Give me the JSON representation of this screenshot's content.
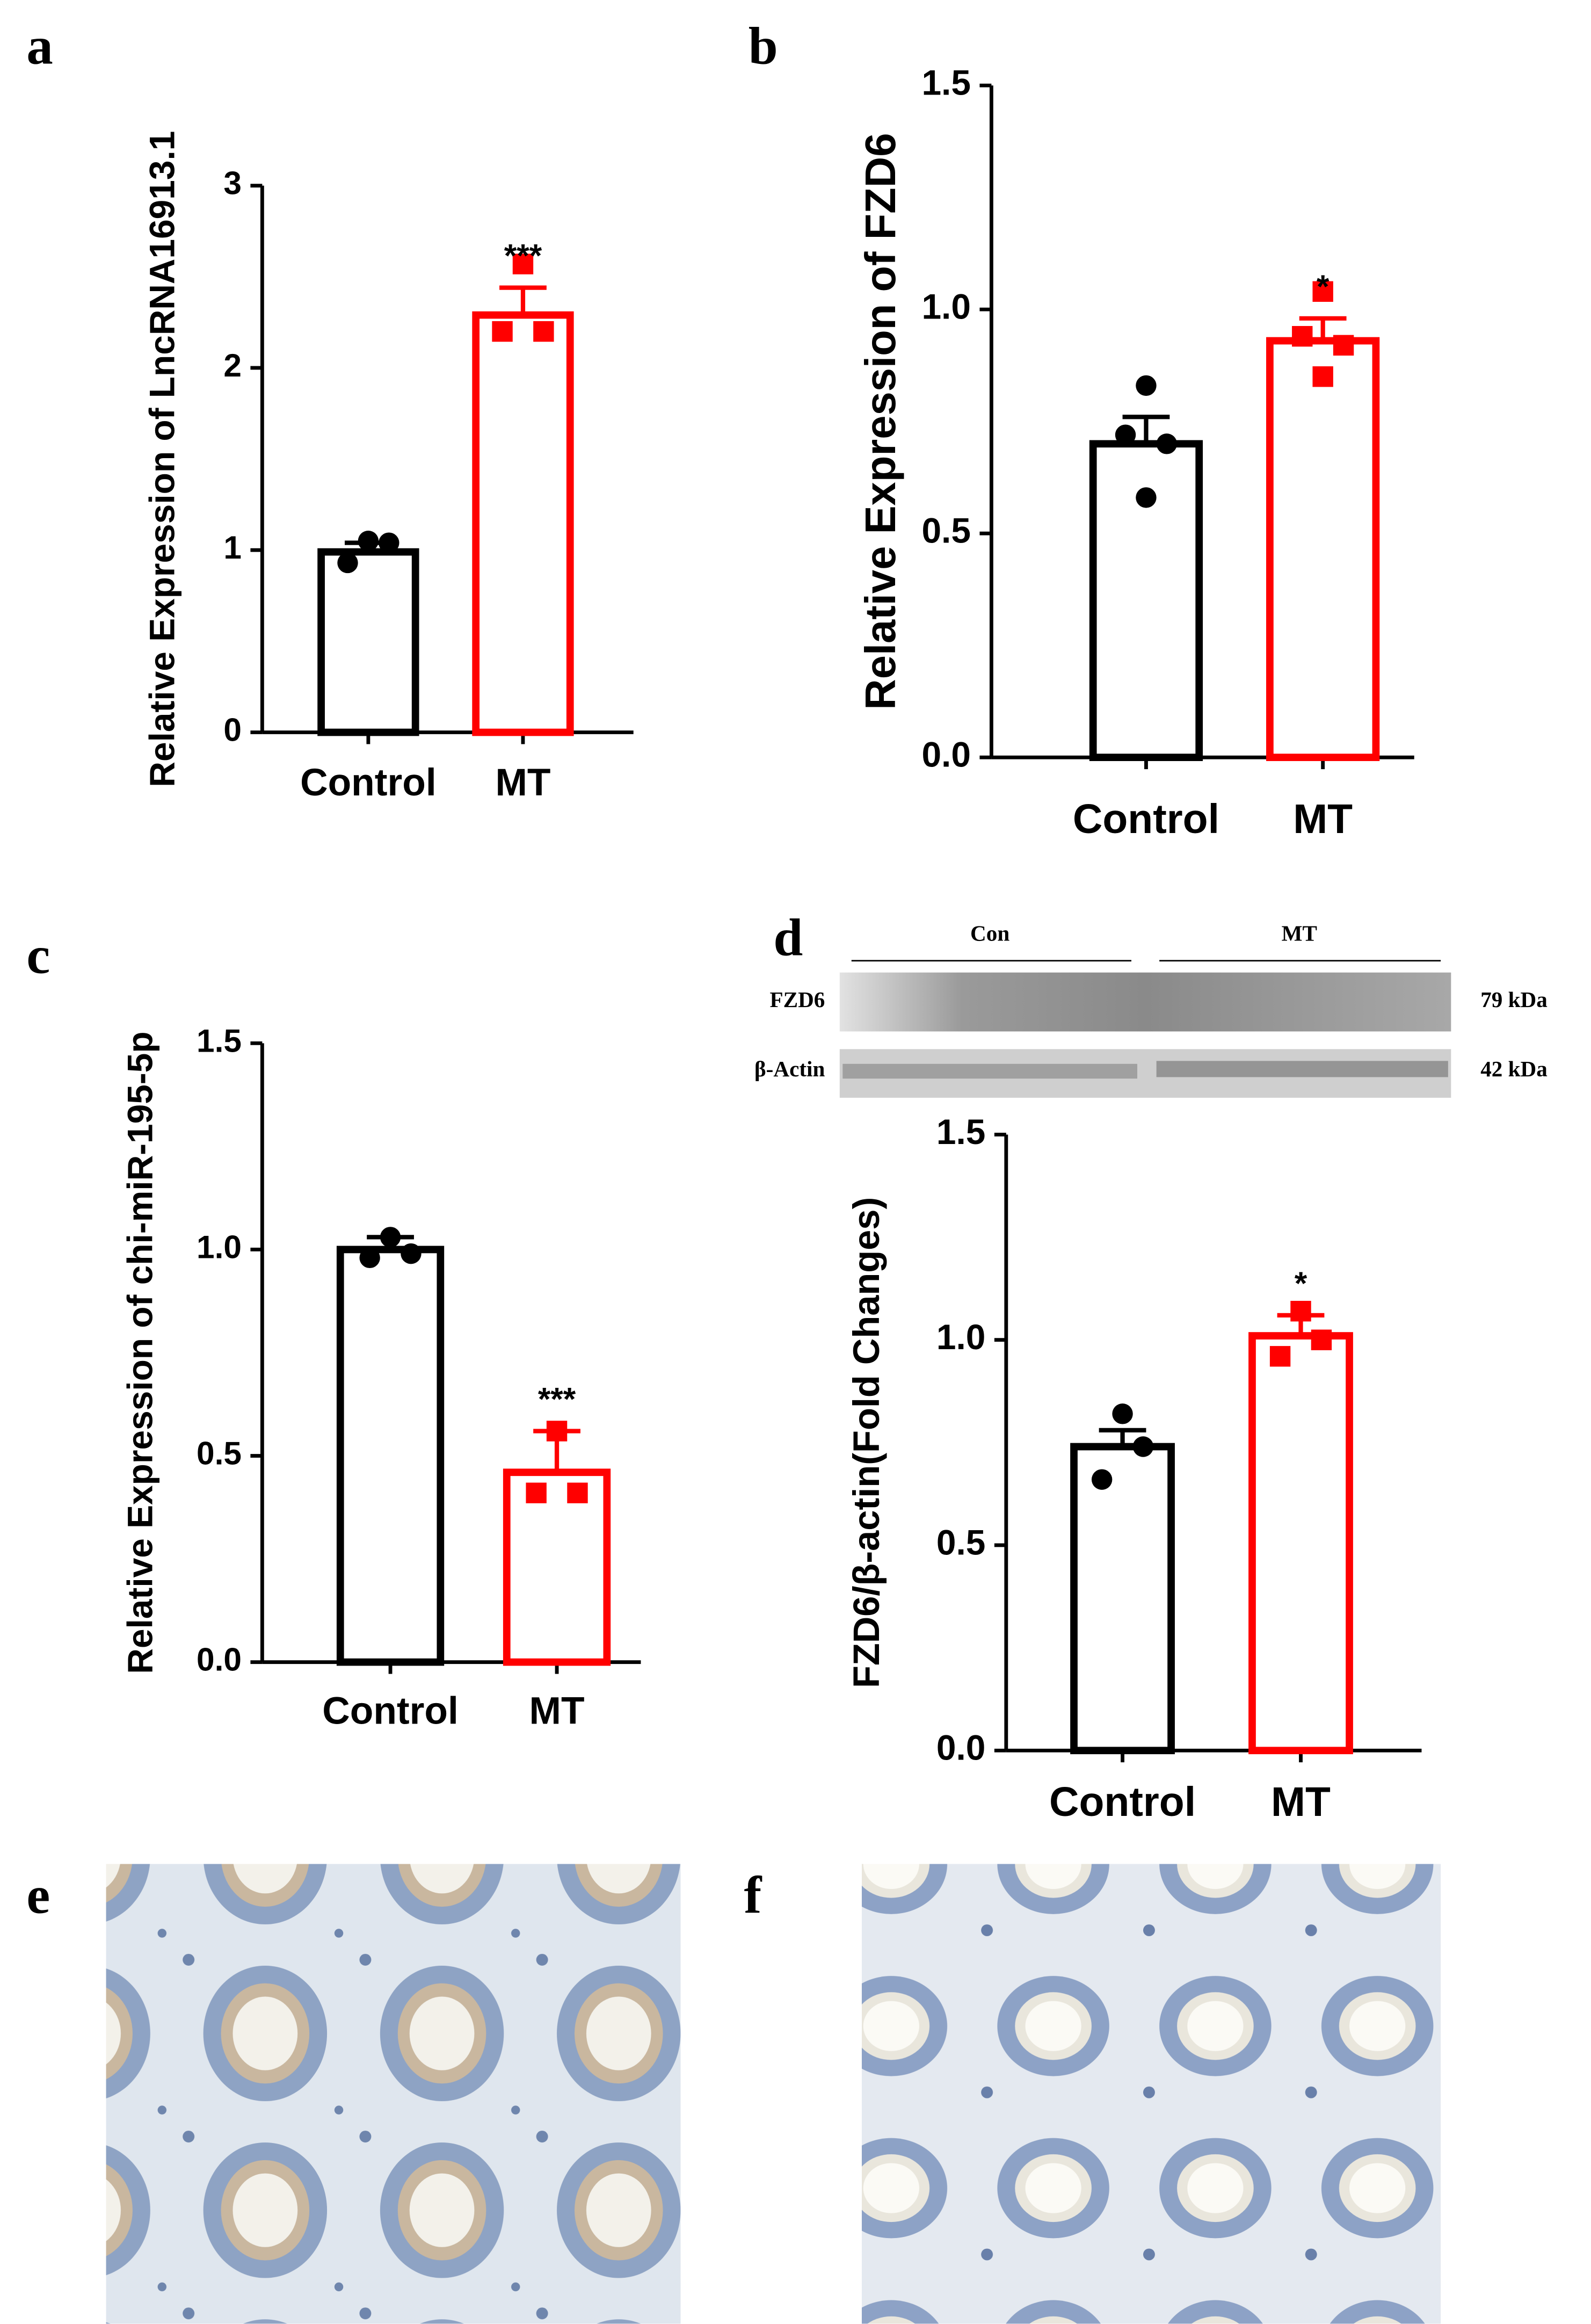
{
  "chart_data": [
    {
      "type": "bar",
      "panel_label": "a",
      "ylabel": "Relative Expression of LncRNA16913.1",
      "categories": [
        "Control",
        "MT"
      ],
      "values": [
        0.99,
        2.29
      ],
      "errors": [
        0.05,
        0.15
      ],
      "points": [
        [
          1.05,
          0.93,
          1.04
        ],
        [
          2.57,
          2.2,
          2.2
        ]
      ],
      "colors": [
        "#000000",
        "#ff0000"
      ],
      "significance": [
        null,
        "***"
      ],
      "ylim": [
        0,
        3
      ],
      "yticks": [
        0,
        1,
        2,
        3
      ]
    },
    {
      "type": "bar",
      "panel_label": "b",
      "ylabel": "Relative Expression of FZD6",
      "categories": [
        "Control",
        "MT"
      ],
      "values": [
        0.7,
        0.93
      ],
      "errors": [
        0.06,
        0.05
      ],
      "points": [
        [
          0.83,
          0.7,
          0.72,
          0.58
        ],
        [
          1.04,
          0.92,
          0.94,
          0.85
        ]
      ],
      "colors": [
        "#000000",
        "#ff0000"
      ],
      "significance": [
        null,
        "*"
      ],
      "ylim": [
        0,
        1.5
      ],
      "yticks": [
        {
          "value": 0,
          "label": "0.0"
        },
        {
          "value": 0.5,
          "label": "0.5"
        },
        {
          "value": 1,
          "label": "1.0"
        },
        {
          "value": 1.5,
          "label": "1.5"
        }
      ]
    },
    {
      "type": "bar",
      "panel_label": "c",
      "ylabel": "Relative Expression of chi-miR-195-5p",
      "categories": [
        "Control",
        "MT"
      ],
      "values": [
        1.0,
        0.46
      ],
      "errors": [
        0.03,
        0.1
      ],
      "points": [
        [
          1.03,
          0.98,
          0.99
        ],
        [
          0.56,
          0.41,
          0.41
        ]
      ],
      "colors": [
        "#000000",
        "#ff0000"
      ],
      "significance": [
        null,
        "***"
      ],
      "ylim": [
        0,
        1.5
      ],
      "yticks": [
        {
          "value": 0,
          "label": "0.0"
        },
        {
          "value": 0.5,
          "label": "0.5"
        },
        {
          "value": 1,
          "label": "1.0"
        },
        {
          "value": 1.5,
          "label": "1.5"
        }
      ]
    },
    {
      "type": "bar",
      "panel_label": "d",
      "ylabel": "FZD6/β-actin(Fold Changes)",
      "categories": [
        "Control",
        "MT"
      ],
      "values": [
        0.74,
        1.01
      ],
      "errors": [
        0.04,
        0.05
      ],
      "points": [
        [
          0.82,
          0.66,
          0.74
        ],
        [
          1.07,
          0.96,
          1.0
        ]
      ],
      "colors": [
        "#000000",
        "#ff0000"
      ],
      "significance": [
        null,
        "*"
      ],
      "ylim": [
        0,
        1.5
      ],
      "yticks": [
        {
          "value": 0,
          "label": "0.0"
        },
        {
          "value": 0.5,
          "label": "0.5"
        },
        {
          "value": 1,
          "label": "1.0"
        },
        {
          "value": 1.5,
          "label": "1.5"
        }
      ],
      "blot": {
        "groups": [
          "Con",
          "MT"
        ],
        "rows": [
          {
            "name": "FZD6",
            "size": "79 kDa"
          },
          {
            "name": "β-Actin",
            "size": "42 kDa"
          }
        ]
      }
    }
  ],
  "images": [
    {
      "panel_label": "e"
    },
    {
      "panel_label": "f"
    }
  ]
}
